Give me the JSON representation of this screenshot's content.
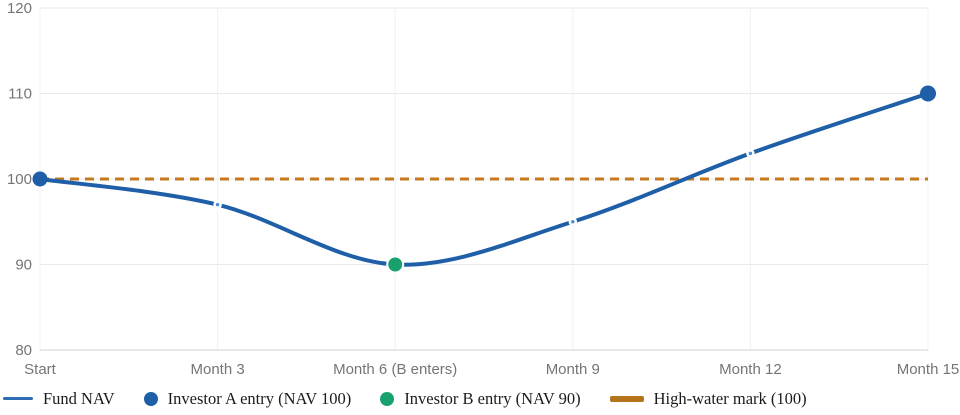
{
  "chart_data": {
    "type": "line",
    "title": "",
    "xlabel": "",
    "ylabel": "",
    "categories": [
      "Start",
      "Month 3",
      "Month 6 (B enters)",
      "Month 9",
      "Month 12",
      "Month 15"
    ],
    "series": [
      {
        "name": "Fund NAV",
        "values": [
          100,
          97,
          90,
          95,
          103,
          110
        ],
        "color": "#1f5fa8"
      }
    ],
    "markers": [
      {
        "index": 0,
        "value": 100,
        "label": "Investor A entry (NAV 100)",
        "color": "#1f5fa8",
        "ring": false,
        "radius": 7.5
      },
      {
        "index": 2,
        "value": 90,
        "label": "Investor B entry (NAV 90)",
        "color": "#18a06e",
        "ring": true,
        "radius": 8
      },
      {
        "index": 5,
        "value": 110,
        "color": "#1f5fa8",
        "ring": false,
        "radius": 8
      }
    ],
    "small_point_color": "#4a8fd4",
    "high_water_mark": {
      "label": "High-water mark (100)",
      "value": 100,
      "color": "#c4791c"
    },
    "ylim": [
      80,
      120
    ],
    "y_ticks": [
      80,
      90,
      100,
      110,
      120
    ],
    "grid": true,
    "legend_position": "bottom",
    "colors": {
      "grid_horizontal": "#eaeaea",
      "grid_vertical": "#f1f1f1",
      "axis_line": "#d0d0d0",
      "tick_text": "#757575"
    }
  },
  "legend": {
    "items": [
      {
        "label": "Fund NAV",
        "swatch": "line",
        "color": "#2e6cb3"
      },
      {
        "label": "Investor A entry (NAV 100)",
        "swatch": "dot",
        "color": "#1f5fa8"
      },
      {
        "label": "Investor B entry (NAV 90)",
        "swatch": "dot",
        "color": "#18a06e"
      },
      {
        "label": "High-water mark (100)",
        "swatch": "thick-line",
        "color": "#b5731c"
      }
    ]
  }
}
